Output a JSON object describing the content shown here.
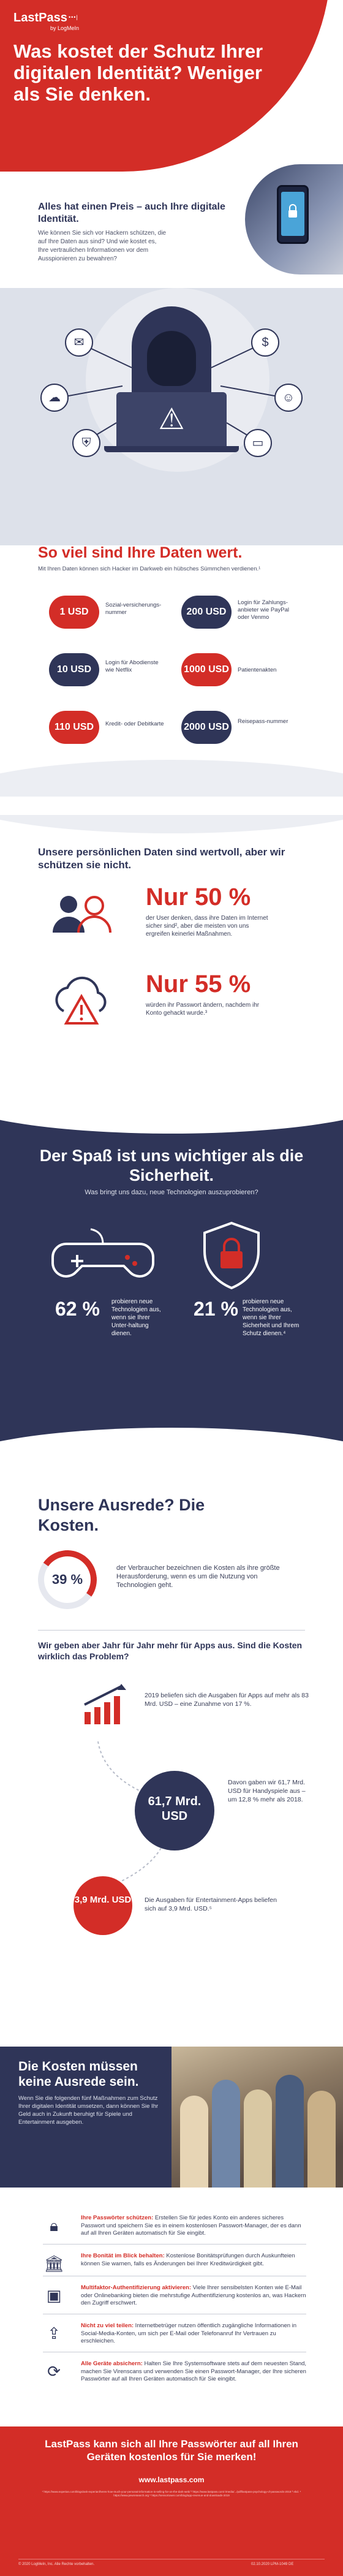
{
  "brand": {
    "name": "LastPass",
    "dots": "•••|",
    "sub": "by LogMeIn"
  },
  "hero": {
    "title": "Was kostet der Schutz Ihrer digitalen Identität? Weniger als Sie denken."
  },
  "intro": {
    "heading": "Alles hat einen Preis – auch Ihre digitale Identität.",
    "body": "Wie können Sie sich vor Hackern schützen, die auf Ihre Daten aus sind? Und wie kostet es, Ihre vertraulichen Informationen vor dem Ausspionieren zu bewahren?"
  },
  "prices": {
    "title": "So viel sind Ihre Daten wert.",
    "subtitle": "Mit Ihren Daten können sich Hacker im Darkweb ein hübsches Sümmchen verdienen.¹",
    "items": [
      {
        "price": "1 USD",
        "label": "Sozial-versicherungs-nummer"
      },
      {
        "price": "200 USD",
        "label": "Login für Zahlungs-anbieter wie PayPal oder Venmo"
      },
      {
        "price": "10 USD",
        "label": "Login für Abodienste wie Netflix"
      },
      {
        "price": "1000 USD",
        "label": "Patientenakten"
      },
      {
        "price": "110 USD",
        "label": "Kredit- oder Debitkarte"
      },
      {
        "price": "2000 USD",
        "label": "Reisepass-nummer"
      }
    ]
  },
  "valuable": {
    "title": "Unsere persönlichen Daten sind wertvoll, aber wir schützen sie nicht.",
    "stat1_value": "Nur 50 %",
    "stat1_text": "der User denken, dass ihre Daten im Internet sicher sind², aber die meisten von uns ergreifen keinerlei Maßnahmen.",
    "stat2_value": "Nur 55 %",
    "stat2_text": "würden ihr Passwort ändern, nachdem ihr Konto gehackt wurde.³"
  },
  "fun": {
    "title": "Der Spaß ist uns wichtiger als die Sicherheit.",
    "subtitle": "Was bringt uns dazu, neue Technologien auszuprobieren?",
    "stat1_value": "62 %",
    "stat1_text": "probieren neue Technologien aus, wenn sie Ihrer Unter-haltung dienen.",
    "stat2_value": "21 %",
    "stat2_text": "probieren neue Technologien aus, wenn sie Ihrer Sicherheit und Ihrem Schutz dienen.⁴"
  },
  "costs": {
    "title": "Unsere Ausrede? Die Kosten.",
    "ring_value": "39 %",
    "ring_text": "der Verbraucher bezeichnen die Kosten als ihre größte Herausforderung, wenn es um die Nutzung von Technologien geht.",
    "question": "Wir geben aber Jahr für Jahr mehr für Apps aus. Sind die Kosten wirklich das Problem?",
    "apps_text": "2019 beliefen sich die Ausgaben für Apps auf mehr als 83 Mrd. USD – eine Zunahme von 17 %.",
    "games_value": "61,7 Mrd. USD",
    "games_text": "Davon gaben wir 61,7 Mrd. USD für Handyspiele aus – um 12,8 % mehr als 2018.",
    "ent_value": "3,9 Mrd. USD",
    "ent_text": "Die Ausgaben für Entertainment-Apps beliefen sich auf 3,9 Mrd. USD.⁵"
  },
  "excuse": {
    "title": "Die Kosten müssen keine Ausrede sein.",
    "body": "Wenn Sie die folgenden fünf Maßnahmen zum Schutz Ihrer digitalen Identität umsetzen, dann können Sie Ihr Geld auch in Zukunft beruhigt für Spiele und Entertainment ausgeben."
  },
  "tips": [
    {
      "icon": "lock",
      "bold": "Ihre Passwörter schützen:",
      "text": " Erstellen Sie für jedes Konto ein anderes sicheres Passwort und speichern Sie es in einem kostenlosen Passwort-Manager, der es dann auf all Ihren Geräten automatisch für Sie eingibt."
    },
    {
      "icon": "bank",
      "bold": "Ihre Bonität im Blick behalten:",
      "text": " Kostenlose Bonitätsprüfungen durch Auskunfteien können Sie warnen, falls es Änderungen bei Ihrer Kreditwürdigkeit gibt."
    },
    {
      "icon": "mfa",
      "bold": "Multifaktor-Authentifizierung aktivieren:",
      "text": " Viele Ihrer sensibelsten Konten wie E-Mail oder Onlinebanking bieten die mehrstufige Authentifizierung kostenlos an, was Hackern den Zugriff erschwert."
    },
    {
      "icon": "share",
      "bold": "Nicht zu viel teilen:",
      "text": " Internetbetrüger nutzen öffentlich zugängliche Informationen in Social-Media-Konten, um sich per E-Mail oder Telefonanruf Ihr Vertrauen zu erschleichen."
    },
    {
      "icon": "update",
      "bold": "Alle Geräte absichern:",
      "text": " Halten Sie Ihre Systemsoftware stets auf dem neuesten Stand, machen Sie Virenscans und verwenden Sie einen Passwort-Manager, der Ihre sicheren Passwörter auf all Ihren Geräten automatisch für Sie eingibt."
    }
  ],
  "footer": {
    "title": "LastPass kann sich all Ihre Passwörter auf all Ihren Geräten kostenlos für Sie merken!",
    "url": "www.lastpass.com",
    "fine": "¹ https://www.experian.com/blogs/ask-experian/heres-how-much-your-personal-information-is-selling-for-on-the-dark-web/ ² https://www.lastpass.com/-/media/.../pdf/lastpass-psychology-of-passwords-2018 ³ ebd. ⁴ https://www.pewresearch.org ⁵ https://sensortower.com/blog/app-revenue-and-downloads-2019",
    "copyright": "© 2020 LogMeIn, Inc. Alle Rechte vorbehalten.",
    "ref": "02.10.2020 LPM-1049 DE"
  },
  "colors": {
    "red": "#d32d27",
    "navy": "#2f3558",
    "gray": "#eceef3"
  }
}
